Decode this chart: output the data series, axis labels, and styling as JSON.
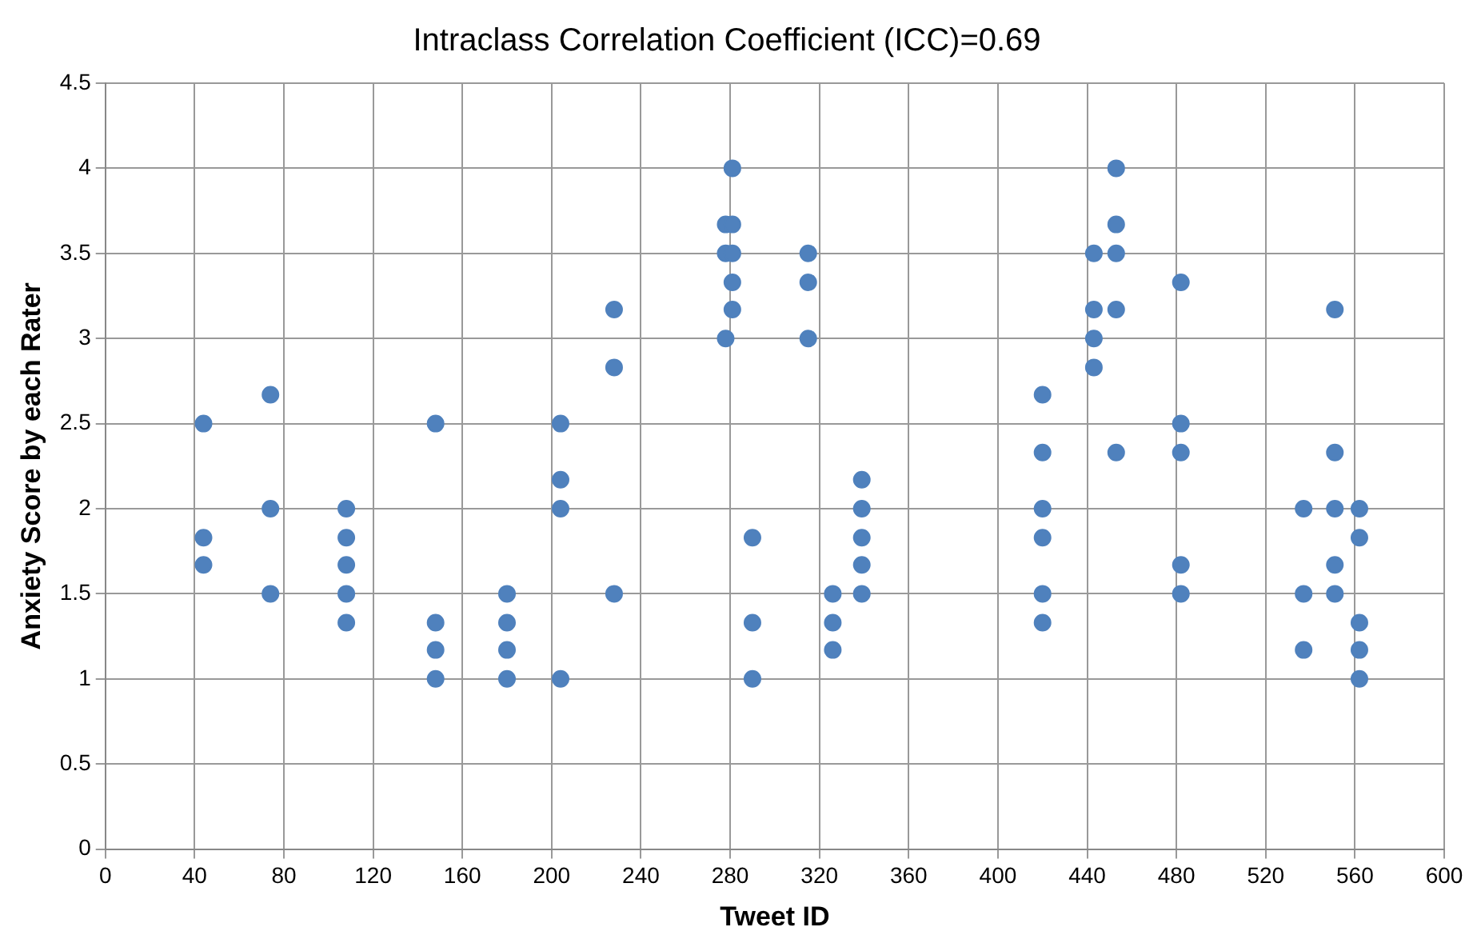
{
  "chart_data": {
    "type": "scatter",
    "title": "Intraclass Correlation Coefficient (ICC)=0.69",
    "xlabel": "Tweet ID",
    "ylabel": "Anxiety Score by each Rater",
    "x": [
      44,
      44,
      44,
      74,
      74,
      74,
      108,
      108,
      108,
      108,
      108,
      148,
      148,
      148,
      148,
      180,
      180,
      180,
      180,
      204,
      204,
      204,
      204,
      228,
      228,
      228,
      278,
      278,
      278,
      281,
      281,
      281,
      281,
      281,
      290,
      290,
      290,
      315,
      315,
      315,
      326,
      326,
      326,
      339,
      339,
      339,
      339,
      339,
      420,
      420,
      420,
      420,
      420,
      420,
      443,
      443,
      443,
      443,
      453,
      453,
      453,
      453,
      453,
      482,
      482,
      482,
      482,
      482,
      537,
      537,
      537,
      551,
      551,
      551,
      551,
      551,
      562,
      562,
      562,
      562,
      562
    ],
    "series": [
      {
        "color": "#4f81bd",
        "values": [
          2.5,
          1.83,
          1.67,
          2.67,
          2,
          1.5,
          2,
          1.83,
          1.67,
          1.5,
          1.33,
          2.5,
          1.33,
          1.17,
          1,
          1.5,
          1.33,
          1.17,
          1,
          2.5,
          2.17,
          2,
          1,
          3.17,
          2.83,
          1.5,
          3.67,
          3.5,
          3,
          4,
          3.67,
          3.5,
          3.33,
          3.17,
          1.83,
          1.33,
          1,
          3.5,
          3.33,
          3,
          1.5,
          1.33,
          1.17,
          2.17,
          2,
          1.83,
          1.67,
          1.5,
          2.67,
          2.33,
          2,
          1.83,
          1.5,
          1.33,
          3.5,
          3.17,
          3,
          2.83,
          4,
          3.67,
          3.5,
          3.17,
          2.33,
          3.33,
          2.5,
          2.33,
          1.67,
          1.5,
          2,
          1.5,
          1.17,
          3.17,
          2.33,
          2,
          1.67,
          1.5,
          2,
          1.83,
          1.33,
          1.17,
          1
        ]
      }
    ],
    "xlim": [
      0,
      600
    ],
    "xticks": [
      0,
      40,
      80,
      120,
      160,
      200,
      240,
      280,
      320,
      360,
      400,
      440,
      480,
      520,
      560,
      600
    ],
    "ylim": [
      0,
      4.5
    ],
    "yticks": [
      0,
      0.5,
      1,
      1.5,
      2,
      2.5,
      3,
      3.5,
      4,
      4.5
    ],
    "grid": true,
    "legend": false,
    "marker": "circle"
  }
}
